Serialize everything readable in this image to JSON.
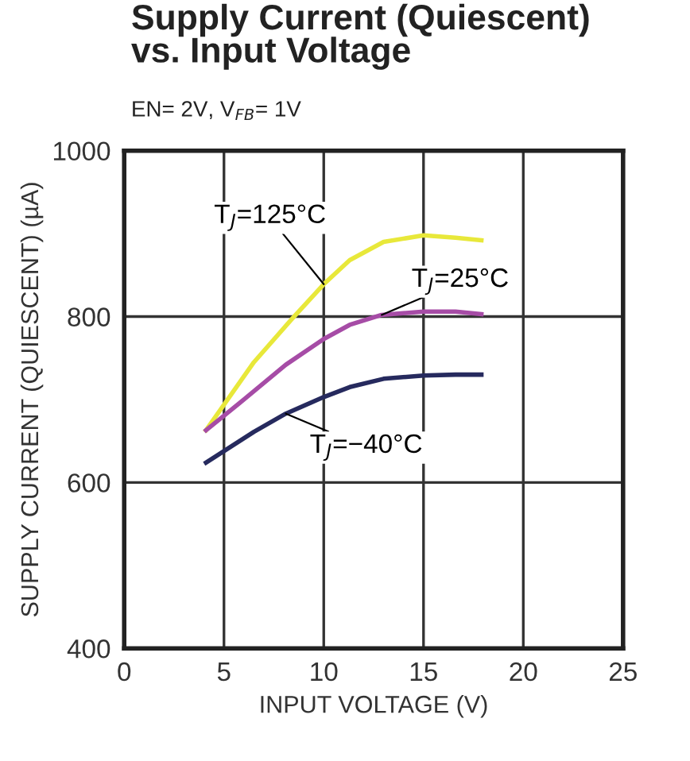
{
  "chart_data": {
    "type": "line",
    "title": "Supply Current (Quiescent)\nvs. Input Voltage",
    "subtitle": "EN= 2V, V$_{FB}$= 1V",
    "xlabel": "INPUT VOLTAGE (V)",
    "ylabel": "SUPPLY CURRENT (QUIESCENT) (µA)",
    "series": [
      {
        "name": "T$_{J}$=125°C",
        "color": "#e8e83a",
        "x": [
          4.1,
          6.5,
          8.4,
          10,
          11.3,
          13,
          15,
          16.6,
          17.9
        ],
        "values": [
          663,
          745,
          797,
          839,
          868,
          890,
          898,
          895,
          892
        ]
      },
      {
        "name": "T$_{J}$=25°C",
        "color": "#a64ca6",
        "x": [
          4.1,
          6,
          8.1,
          10,
          11.3,
          12.9,
          15,
          16.6,
          17.9
        ],
        "values": [
          663,
          700,
          742,
          773,
          790,
          802,
          806,
          806,
          803
        ]
      },
      {
        "name": "T$_{J}$=−40°C",
        "color": "#262a5e",
        "x": [
          4.1,
          6.5,
          8.1,
          10,
          11.3,
          13,
          15,
          16.6,
          17.9
        ],
        "values": [
          624,
          661,
          683,
          703,
          715,
          725,
          729,
          730,
          730
        ]
      }
    ],
    "xlim": [
      0,
      25
    ],
    "xticks": [
      0,
      5,
      10,
      15,
      20,
      25
    ],
    "ylim": [
      400,
      1000
    ],
    "yticks": [
      400,
      600,
      800,
      1000
    ],
    "grid": true,
    "legend": false,
    "line_style": "solid",
    "marker": "none"
  }
}
